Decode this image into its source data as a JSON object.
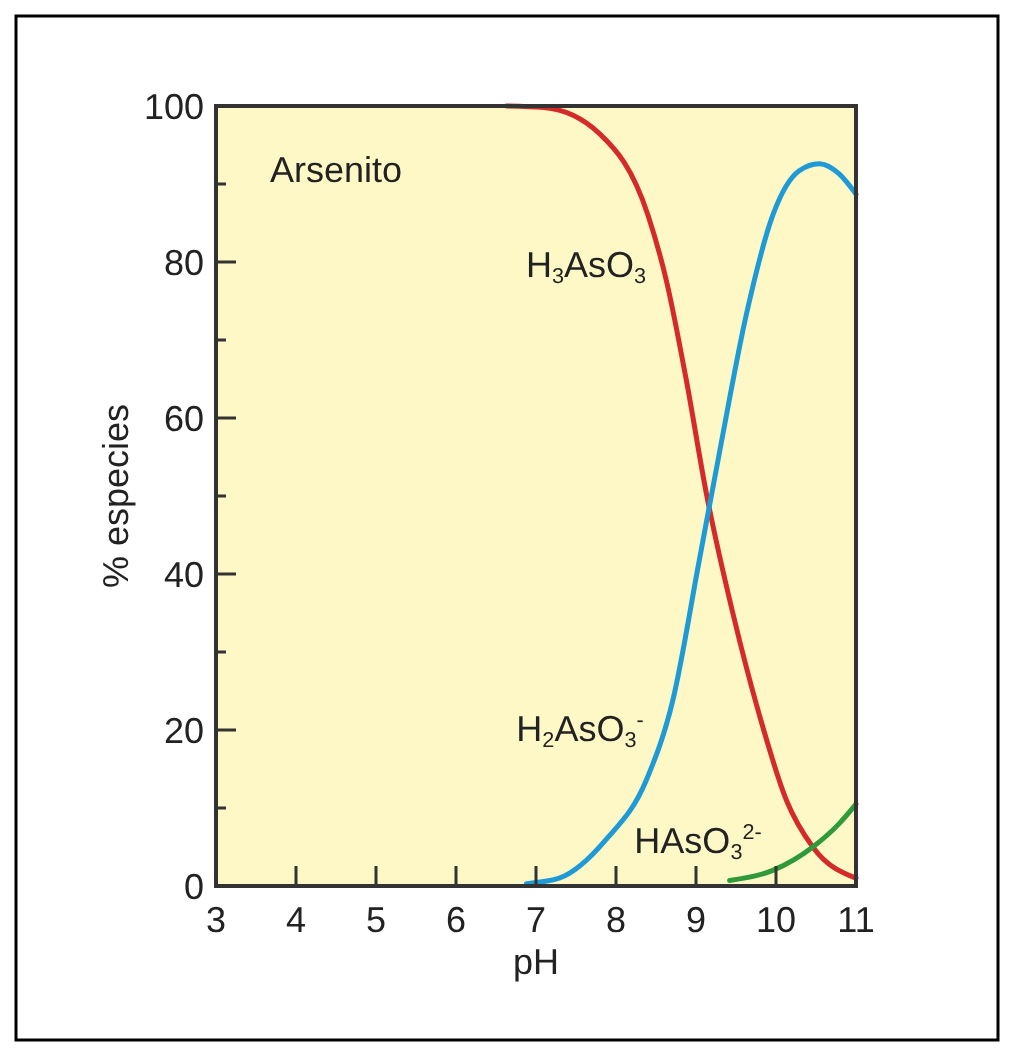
{
  "chart_data": {
    "type": "line",
    "xlabel": "pH",
    "ylabel": "% especies",
    "xlim": [
      3,
      11
    ],
    "ylim": [
      0,
      100
    ],
    "xticks": [
      3,
      4,
      5,
      6,
      7,
      8,
      9,
      10,
      11
    ],
    "yticks": [
      0,
      {
        "value": 10,
        "label": null
      },
      20,
      {
        "value": 30,
        "label": null
      },
      40,
      {
        "value": 50,
        "label": null
      },
      60,
      {
        "value": 70,
        "label": null
      },
      80,
      {
        "value": 90,
        "label": null
      },
      100
    ],
    "grid": false,
    "marker": "none",
    "line_style": "solid",
    "series": [
      {
        "name": "H$_{3}$AsO$_{3}$",
        "color": "#d42a2a",
        "x": [
          6.63,
          7.1,
          7.8,
          8.4,
          8.63,
          8.88,
          9.13,
          9.46,
          9.79,
          10.13,
          10.46,
          11
        ],
        "values": [
          100,
          99.8,
          96.4,
          86,
          77.6,
          64.8,
          50.3,
          35,
          22,
          11,
          5,
          1
        ]
      },
      {
        "name": "H$_{2}$AsO$_{3}$$^{-}$",
        "color": "#1e9ad6",
        "x": [
          6.88,
          7.29,
          7.88,
          8.38,
          8.71,
          9.04,
          9.29,
          9.63,
          9.96,
          10.29,
          10.54,
          10.79,
          11
        ],
        "values": [
          0.3,
          1,
          6,
          13.6,
          23.8,
          41.7,
          55.4,
          73.3,
          86,
          91.7,
          92.6,
          91.3,
          88.7
        ]
      },
      {
        "name": "HAsO$_{3}$$^{2-}$",
        "color": "#2e9a3a",
        "x": [
          9.42,
          9.96,
          10.46,
          10.79,
          11
        ],
        "values": [
          0.7,
          2,
          5,
          8,
          10.5
        ]
      }
    ],
    "annotations": [
      "Arsenito"
    ]
  }
}
